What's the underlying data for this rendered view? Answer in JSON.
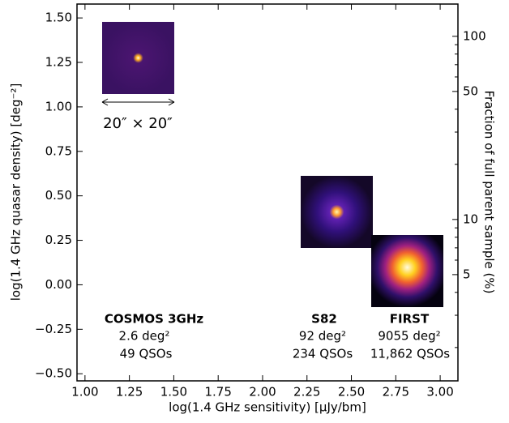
{
  "chart_data": {
    "type": "image",
    "xlabel": "log(1.4 GHz sensitivity) [μJy/bm]",
    "ylabel": "log(1.4 GHz quasar density) [deg⁻²]",
    "y2label": "Fraction of full parent sample (%)",
    "xlim": [
      0.955,
      3.1
    ],
    "xticks": [
      {
        "value": 1,
        "label": "1.00"
      },
      {
        "value": 1.25,
        "label": "1.25"
      },
      {
        "value": 1.5,
        "label": "1.50"
      },
      {
        "value": 1.75,
        "label": "1.75"
      },
      {
        "value": 2,
        "label": "2.00"
      },
      {
        "value": 2.25,
        "label": "2.25"
      },
      {
        "value": 2.5,
        "label": "2.50"
      },
      {
        "value": 2.75,
        "label": "2.75"
      },
      {
        "value": 3,
        "label": "3.00"
      }
    ],
    "ylim": [
      -0.54,
      1.578
    ],
    "yticks": [
      {
        "value": -0.5,
        "label": "−0.50"
      },
      {
        "value": -0.25,
        "label": "−0.25"
      },
      {
        "value": 0,
        "label": "0.00"
      },
      {
        "value": 0.25,
        "label": "0.25"
      },
      {
        "value": 0.5,
        "label": "0.50"
      },
      {
        "value": 0.75,
        "label": "0.75"
      },
      {
        "value": 1,
        "label": "1.00"
      },
      {
        "value": 1.25,
        "label": "1.25"
      },
      {
        "value": 1.5,
        "label": "1.50"
      }
    ],
    "y2lim": [
      1.315,
      150
    ],
    "y2scale": "log",
    "y2ticks": [
      5,
      10,
      50,
      100
    ],
    "y2minor_ticks": [
      2,
      3,
      4,
      6,
      7,
      8,
      9,
      20,
      30,
      40,
      60,
      70,
      80,
      90
    ],
    "annotations": {
      "scale": "20″ × 20″",
      "surveys": [
        {
          "name": "COSMOS 3GHz",
          "area": "2.6 deg²",
          "count": "49 QSOs"
        },
        {
          "name": "S82",
          "area": "92 deg²",
          "count": "234 QSOs"
        },
        {
          "name": "FIRST",
          "area": "9055 deg²",
          "count": "11,862 QSOs"
        }
      ]
    }
  }
}
